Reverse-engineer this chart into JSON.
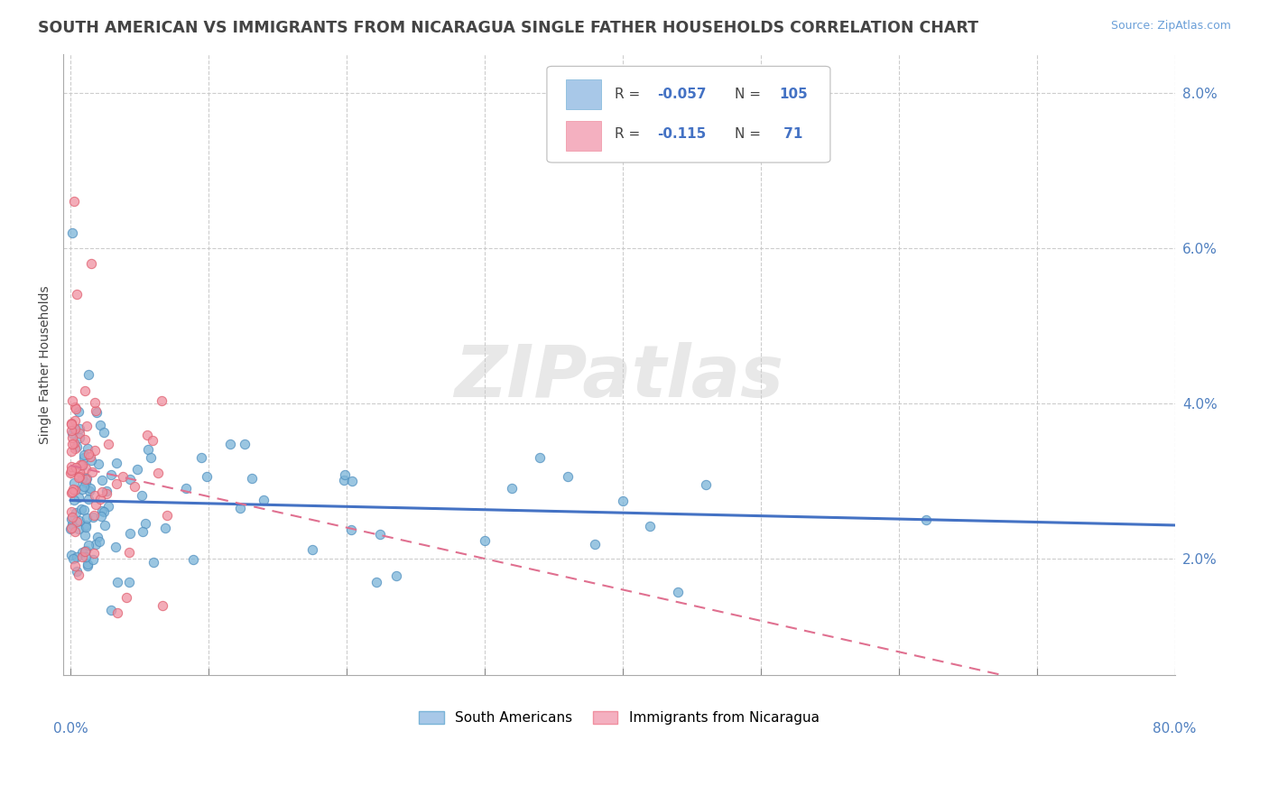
{
  "title": "SOUTH AMERICAN VS IMMIGRANTS FROM NICARAGUA SINGLE FATHER HOUSEHOLDS CORRELATION CHART",
  "source": "Source: ZipAtlas.com",
  "ylabel": "Single Father Households",
  "xlim": [
    -0.005,
    0.8
  ],
  "ylim": [
    0.005,
    0.085
  ],
  "r1": "-0.057",
  "n1": "105",
  "r2": "-0.115",
  "n2": "71",
  "series1_color": "#7ab4d8",
  "series2_color": "#f090a0",
  "series1_edge": "#5090c0",
  "series2_edge": "#e06070",
  "trendline1_color": "#4472c4",
  "trendline2_color": "#e07090",
  "legend1_fill": "#a8c8e8",
  "legend2_fill": "#f4b0c0",
  "legend1_edge": "#7ab4d8",
  "legend2_edge": "#f090a0",
  "background_color": "#ffffff",
  "watermark": "ZIPatlas",
  "title_color": "#444444",
  "source_color": "#6a9fd8",
  "ytick_color": "#5080c0",
  "xtick_color": "#444444",
  "grid_color": "#c8c8c8",
  "title_fontsize": 12.5,
  "source_fontsize": 9,
  "ylabel_fontsize": 10,
  "tick_fontsize": 10,
  "legend_text_color": "#444444",
  "legend_number_color": "#4472c4",
  "trendline1_slope": -0.004,
  "trendline1_intercept": 0.0275,
  "trendline2_slope": -0.04,
  "trendline2_intercept": 0.032
}
